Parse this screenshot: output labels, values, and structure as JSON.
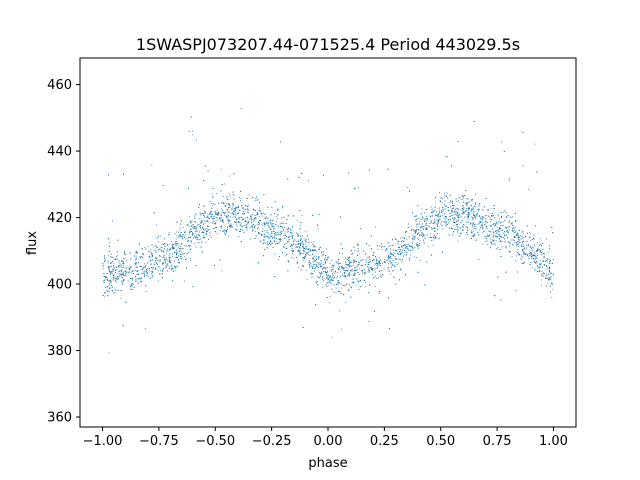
{
  "chart_data": {
    "type": "scatter",
    "title": "1SWASPJ073207.44-071525.4 Period 443029.5s",
    "xlabel": "phase",
    "ylabel": "flux",
    "xlim": [
      -1.1,
      1.1
    ],
    "ylim": [
      357,
      468
    ],
    "xticks": [
      -1.0,
      -0.75,
      -0.5,
      -0.25,
      0.0,
      0.25,
      0.5,
      0.75,
      1.0
    ],
    "xtick_labels": [
      "−1.00",
      "−0.75",
      "−0.50",
      "−0.25",
      "0.00",
      "0.25",
      "0.50",
      "0.75",
      "1.00"
    ],
    "yticks": [
      360,
      380,
      400,
      420,
      440,
      460
    ],
    "ytick_labels": [
      "360",
      "380",
      "400",
      "420",
      "440",
      "460"
    ],
    "grid": false,
    "marker_color": "#1f77b4",
    "series": [
      {
        "point_count_estimate": 6000,
        "phase_range": [
          -1.0,
          1.0
        ],
        "flux_profile": [
          {
            "x": -1.0,
            "y": 403
          },
          {
            "x": -0.9,
            "y": 404
          },
          {
            "x": -0.8,
            "y": 406
          },
          {
            "x": -0.7,
            "y": 409
          },
          {
            "x": -0.6,
            "y": 415
          },
          {
            "x": -0.5,
            "y": 421
          },
          {
            "x": -0.4,
            "y": 421
          },
          {
            "x": -0.3,
            "y": 418
          },
          {
            "x": -0.2,
            "y": 415
          },
          {
            "x": -0.1,
            "y": 410
          },
          {
            "x": 0.0,
            "y": 403
          },
          {
            "x": 0.1,
            "y": 404
          },
          {
            "x": 0.2,
            "y": 406
          },
          {
            "x": 0.3,
            "y": 409
          },
          {
            "x": 0.4,
            "y": 415
          },
          {
            "x": 0.5,
            "y": 421
          },
          {
            "x": 0.6,
            "y": 421
          },
          {
            "x": 0.7,
            "y": 418
          },
          {
            "x": 0.8,
            "y": 415
          },
          {
            "x": 0.9,
            "y": 410
          },
          {
            "x": 1.0,
            "y": 403
          }
        ]
      }
    ]
  }
}
